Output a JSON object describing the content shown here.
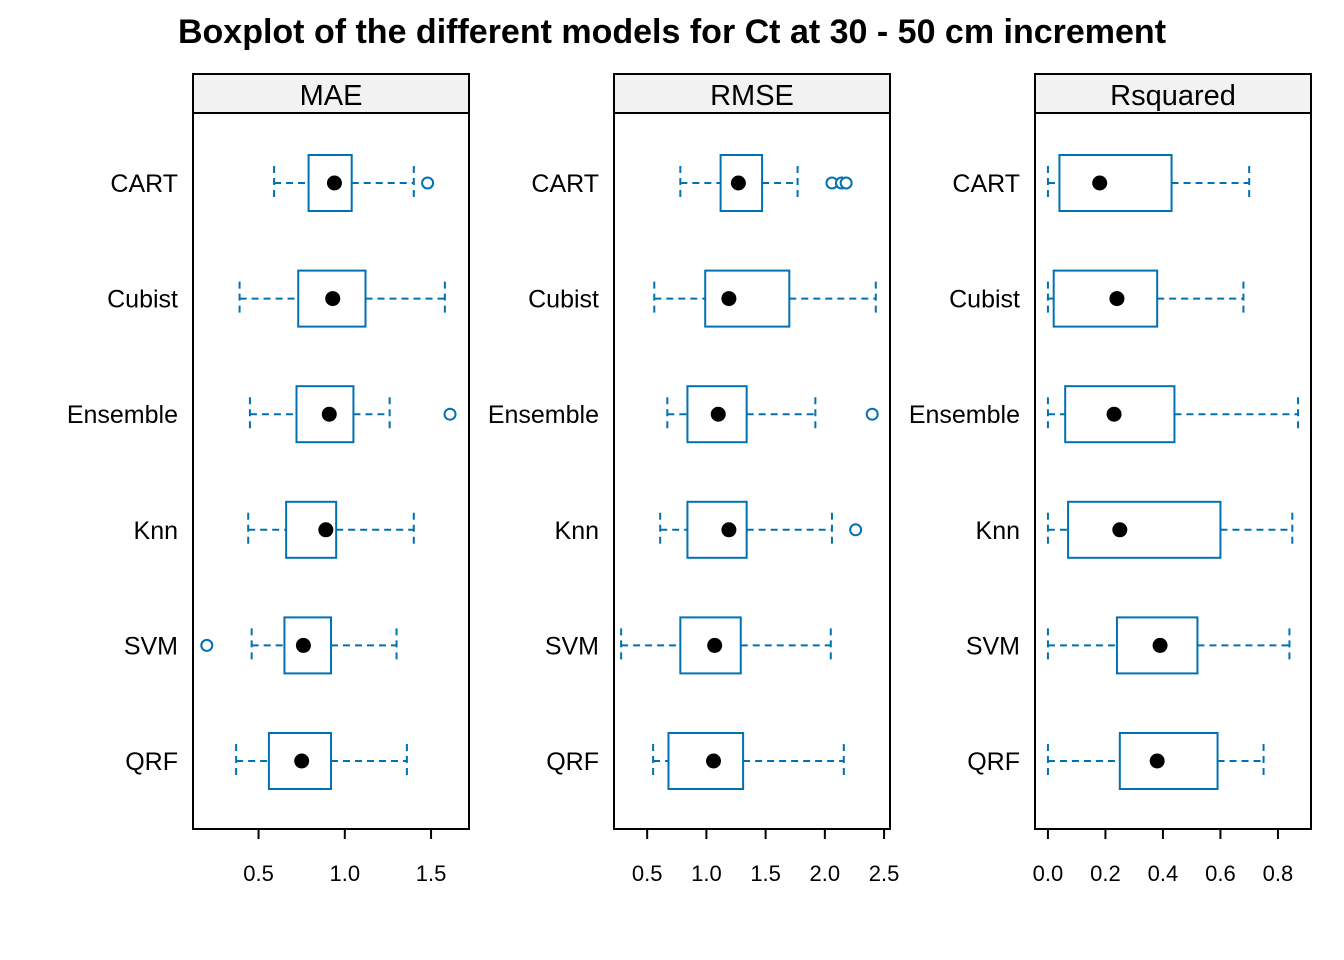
{
  "chart_data": {
    "type": "boxplot",
    "title": "Boxplot of the different models for Ct at 30 - 50 cm increment",
    "categories": [
      "CART",
      "Cubist",
      "Ensemble",
      "Knn",
      "SVM",
      "QRF"
    ],
    "colors": {
      "box": "#0072B2",
      "median": "#000000",
      "strip": "#F2F2F2"
    },
    "panels": [
      {
        "name": "MAE",
        "xlim": [
          0.12,
          1.72
        ],
        "ticks": [
          "0.5",
          "1.0",
          "1.5"
        ],
        "boxes": [
          {
            "category": "CART",
            "whisker_low": 0.59,
            "q1": 0.79,
            "median": 0.94,
            "q3": 1.04,
            "whisker_high": 1.4,
            "outliers": [
              1.48
            ]
          },
          {
            "category": "Cubist",
            "whisker_low": 0.39,
            "q1": 0.73,
            "median": 0.93,
            "q3": 1.12,
            "whisker_high": 1.58,
            "outliers": []
          },
          {
            "category": "Ensemble",
            "whisker_low": 0.45,
            "q1": 0.72,
            "median": 0.91,
            "q3": 1.05,
            "whisker_high": 1.26,
            "outliers": [
              1.61
            ]
          },
          {
            "category": "Knn",
            "whisker_low": 0.44,
            "q1": 0.66,
            "median": 0.89,
            "q3": 0.95,
            "whisker_high": 1.4,
            "outliers": []
          },
          {
            "category": "SVM",
            "whisker_low": 0.46,
            "q1": 0.65,
            "median": 0.76,
            "q3": 0.92,
            "whisker_high": 1.3,
            "outliers": [
              0.2
            ]
          },
          {
            "category": "QRF",
            "whisker_low": 0.37,
            "q1": 0.56,
            "median": 0.75,
            "q3": 0.92,
            "whisker_high": 1.36,
            "outliers": []
          }
        ]
      },
      {
        "name": "RMSE",
        "xlim": [
          0.22,
          2.55
        ],
        "ticks": [
          "0.5",
          "1.0",
          "1.5",
          "2.0",
          "2.5"
        ],
        "boxes": [
          {
            "category": "CART",
            "whisker_low": 0.78,
            "q1": 1.12,
            "median": 1.27,
            "q3": 1.47,
            "whisker_high": 1.77,
            "outliers": [
              2.06,
              2.14,
              2.18
            ]
          },
          {
            "category": "Cubist",
            "whisker_low": 0.56,
            "q1": 0.99,
            "median": 1.19,
            "q3": 1.7,
            "whisker_high": 2.43,
            "outliers": []
          },
          {
            "category": "Ensemble",
            "whisker_low": 0.67,
            "q1": 0.84,
            "median": 1.1,
            "q3": 1.34,
            "whisker_high": 1.92,
            "outliers": [
              2.4
            ]
          },
          {
            "category": "Knn",
            "whisker_low": 0.61,
            "q1": 0.84,
            "median": 1.19,
            "q3": 1.34,
            "whisker_high": 2.06,
            "outliers": [
              2.26
            ]
          },
          {
            "category": "SVM",
            "whisker_low": 0.28,
            "q1": 0.78,
            "median": 1.07,
            "q3": 1.29,
            "whisker_high": 2.05,
            "outliers": []
          },
          {
            "category": "QRF",
            "whisker_low": 0.55,
            "q1": 0.68,
            "median": 1.06,
            "q3": 1.31,
            "whisker_high": 2.16,
            "outliers": []
          }
        ]
      },
      {
        "name": "Rsquared",
        "xlim": [
          -0.045,
          0.915
        ],
        "ticks": [
          "0.0",
          "0.2",
          "0.4",
          "0.6",
          "0.8"
        ],
        "boxes": [
          {
            "category": "CART",
            "whisker_low": 0.0,
            "q1": 0.04,
            "median": 0.18,
            "q3": 0.43,
            "whisker_high": 0.7,
            "outliers": []
          },
          {
            "category": "Cubist",
            "whisker_low": 0.0,
            "q1": 0.02,
            "median": 0.24,
            "q3": 0.38,
            "whisker_high": 0.68,
            "outliers": []
          },
          {
            "category": "Ensemble",
            "whisker_low": 0.0,
            "q1": 0.06,
            "median": 0.23,
            "q3": 0.44,
            "whisker_high": 0.87,
            "outliers": []
          },
          {
            "category": "Knn",
            "whisker_low": 0.0,
            "q1": 0.07,
            "median": 0.25,
            "q3": 0.6,
            "whisker_high": 0.85,
            "outliers": []
          },
          {
            "category": "SVM",
            "whisker_low": 0.0,
            "q1": 0.24,
            "median": 0.39,
            "q3": 0.52,
            "whisker_high": 0.84,
            "outliers": []
          },
          {
            "category": "QRF",
            "whisker_low": 0.0,
            "q1": 0.25,
            "median": 0.38,
            "q3": 0.59,
            "whisker_high": 0.75,
            "outliers": []
          }
        ]
      }
    ]
  }
}
